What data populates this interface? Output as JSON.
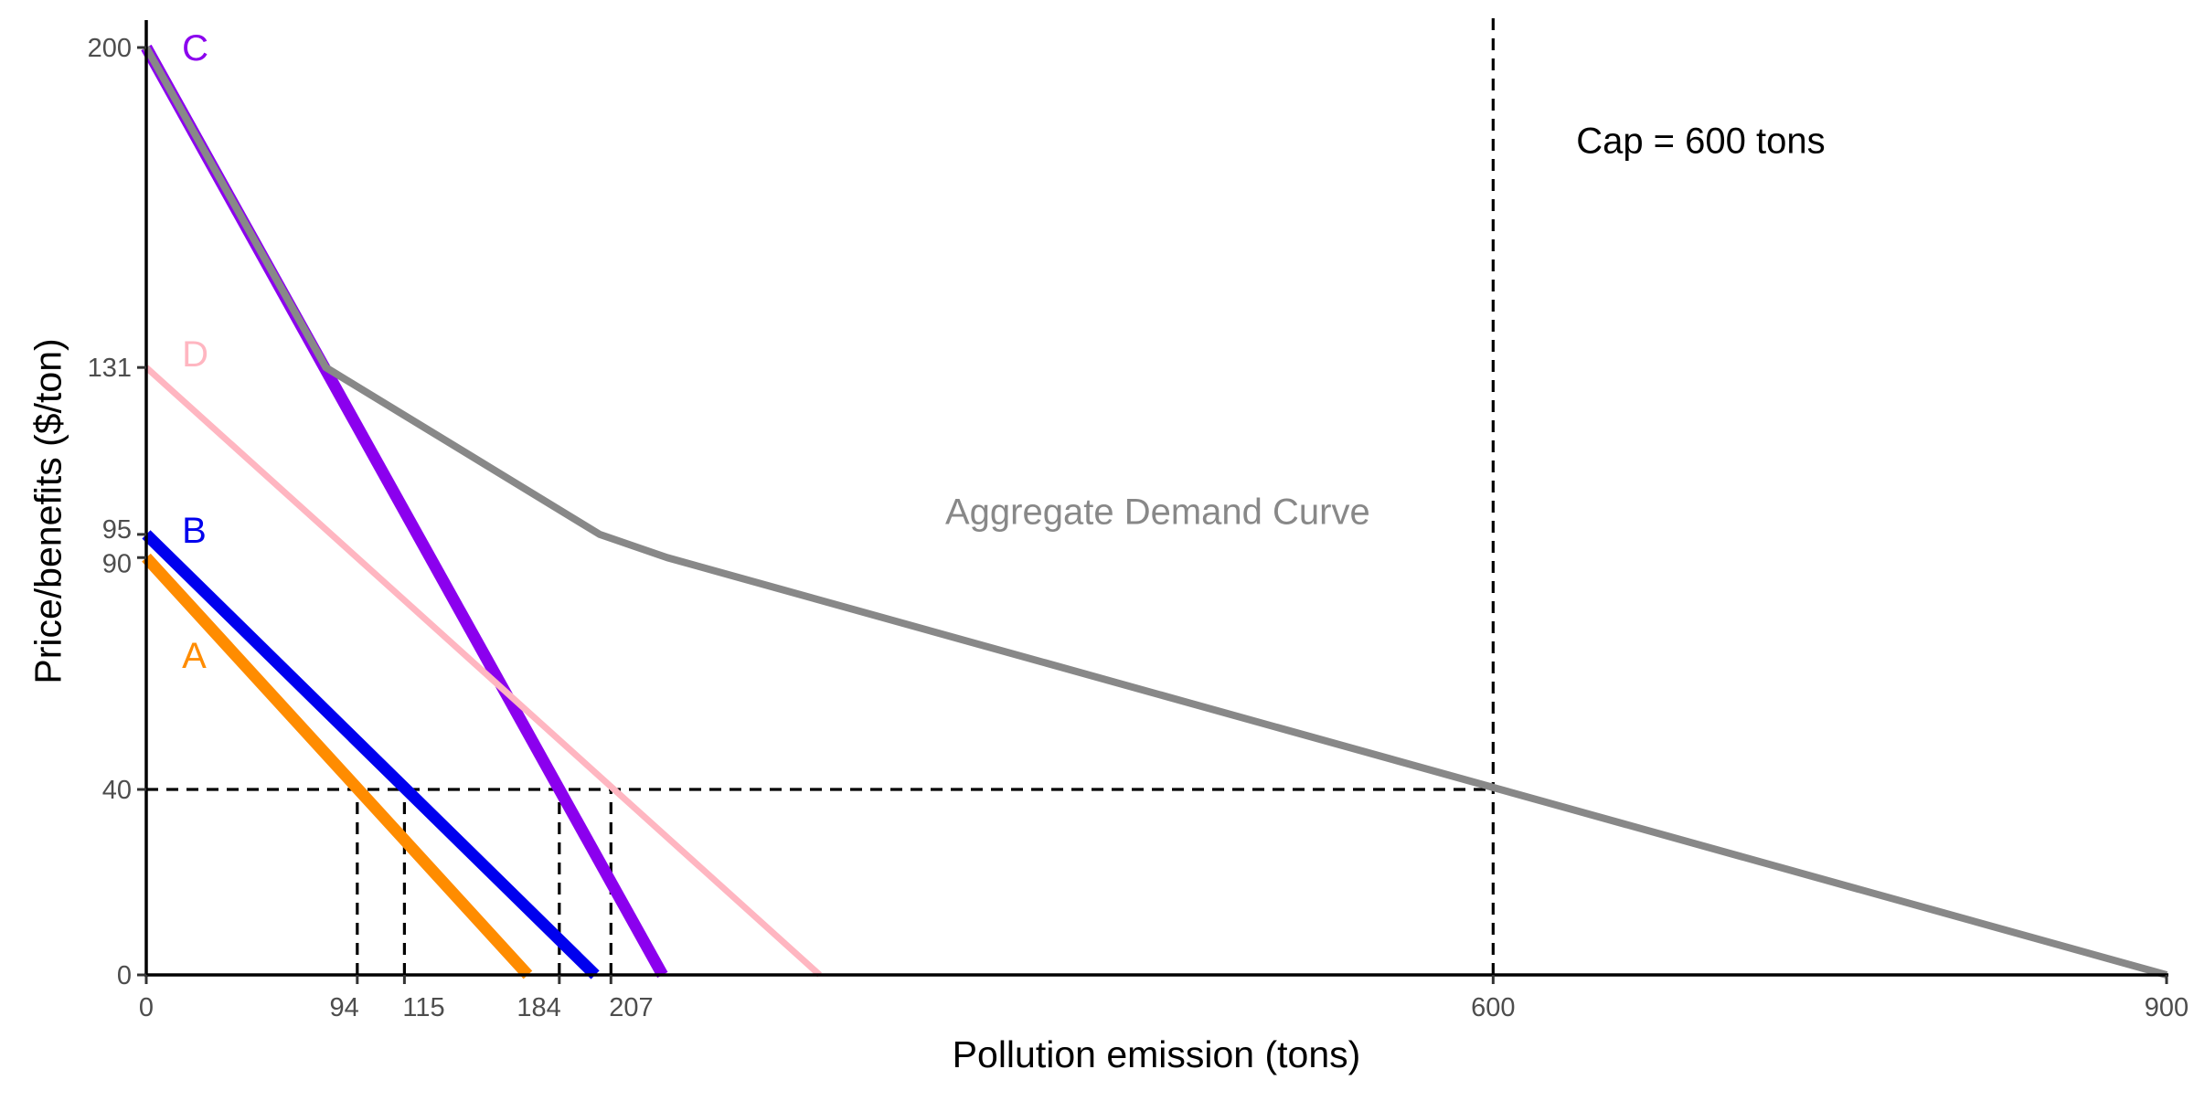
{
  "chart_data": {
    "type": "line",
    "xlabel": "Pollution emission (tons)",
    "ylabel": "Price/benefits ($/ton)",
    "xlim": [
      0,
      900
    ],
    "ylim": [
      0,
      200
    ],
    "x_ticks": [
      {
        "value": 0,
        "label": "0"
      },
      {
        "value": 94,
        "label": "94"
      },
      {
        "value": 115,
        "label": "115"
      },
      {
        "value": 184,
        "label": "184"
      },
      {
        "value": 207,
        "label": "207"
      },
      {
        "value": 600,
        "label": "600"
      },
      {
        "value": 900,
        "label": "900"
      }
    ],
    "y_ticks": [
      {
        "value": 0,
        "label": "0"
      },
      {
        "value": 40,
        "label": "40"
      },
      {
        "value": 90,
        "label": "90"
      },
      {
        "value": 95,
        "label": "95"
      },
      {
        "value": 131,
        "label": "131"
      },
      {
        "value": 200,
        "label": "200"
      }
    ],
    "grid": false,
    "series": [
      {
        "name": "A",
        "color": "#FF8C00",
        "width": 13,
        "points": [
          [
            0,
            90
          ],
          [
            170,
            0
          ]
        ]
      },
      {
        "name": "B",
        "color": "#0000EE",
        "width": 13,
        "points": [
          [
            0,
            95
          ],
          [
            200,
            0
          ]
        ]
      },
      {
        "name": "C",
        "color": "#8B00EE",
        "width": 13,
        "points": [
          [
            0,
            200
          ],
          [
            230,
            0
          ]
        ]
      },
      {
        "name": "D",
        "color": "#FFB6C1",
        "width": 7,
        "points": [
          [
            0,
            131
          ],
          [
            300,
            0
          ]
        ]
      },
      {
        "name": "Aggregate Demand Curve",
        "color": "#888888",
        "width": 8,
        "points": [
          [
            0,
            200
          ],
          [
            80,
            131
          ],
          [
            202,
            95
          ],
          [
            232,
            90
          ],
          [
            900,
            0
          ]
        ]
      }
    ],
    "series_labels": [
      {
        "text": "C",
        "color": "#8B00EE",
        "x": 20,
        "y": 200
      },
      {
        "text": "D",
        "color": "#FFB6C1",
        "x": 20,
        "y": 134
      },
      {
        "text": "B",
        "color": "#0000EE",
        "x": 20,
        "y": 96
      },
      {
        "text": "A",
        "color": "#FF8C00",
        "x": 20,
        "y": 69
      },
      {
        "text": "Aggregate Demand Curve",
        "color": "#888888",
        "x": 360,
        "y": 100
      }
    ],
    "reference_lines": [
      {
        "kind": "horizontal",
        "y": 40,
        "x_from": 0,
        "x_to": 600
      },
      {
        "kind": "vertical",
        "x": 600,
        "y_from": 0,
        "y_to": 207
      },
      {
        "kind": "vertical",
        "x": 94,
        "y_from": 0,
        "y_to": 40
      },
      {
        "kind": "vertical",
        "x": 115,
        "y_from": 0,
        "y_to": 40
      },
      {
        "kind": "vertical",
        "x": 184,
        "y_from": 0,
        "y_to": 40
      },
      {
        "kind": "vertical",
        "x": 207,
        "y_from": 0,
        "y_to": 40
      }
    ],
    "annotations": [
      {
        "text": "Cap = 600 tons",
        "x": 637,
        "y": 180
      }
    ]
  }
}
